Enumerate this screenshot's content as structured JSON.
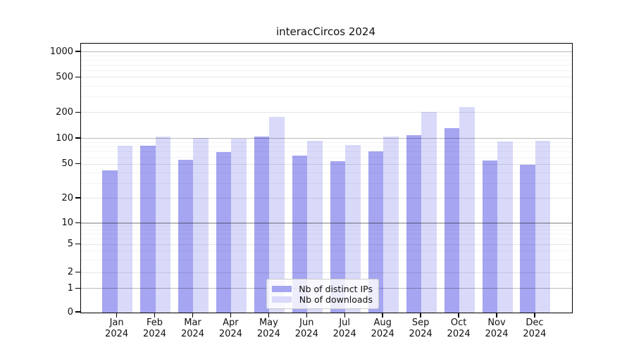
{
  "title": "interacCircos 2024",
  "legend": {
    "entries": [
      "Nb of distinct IPs",
      "Nb of downloads"
    ]
  },
  "chart_data": {
    "type": "bar",
    "title": "interacCircos 2024",
    "categories": [
      "Jan 2024",
      "Feb 2024",
      "Mar 2024",
      "Apr 2024",
      "May 2024",
      "Jun 2024",
      "Jul 2024",
      "Aug 2024",
      "Sep 2024",
      "Oct 2024",
      "Nov 2024",
      "Dec 2024"
    ],
    "series": [
      {
        "name": "Nb of distinct IPs",
        "color": "#a5a5f1",
        "values": [
          43,
          83,
          57,
          70,
          106,
          64,
          55,
          71,
          110,
          133,
          56,
          50
        ]
      },
      {
        "name": "Nb of downloads",
        "color": "#d9d9fa",
        "values": [
          83,
          106,
          102,
          101,
          180,
          94,
          84,
          106,
          206,
          235,
          92,
          94
        ]
      }
    ],
    "xlabel": "",
    "ylabel": "",
    "yscale": "symlog",
    "ylim": [
      0,
      1000
    ],
    "yticks": [
      0,
      1,
      2,
      5,
      10,
      20,
      50,
      100,
      200,
      500,
      1000
    ],
    "grid": true,
    "legend_position": "lower center"
  }
}
